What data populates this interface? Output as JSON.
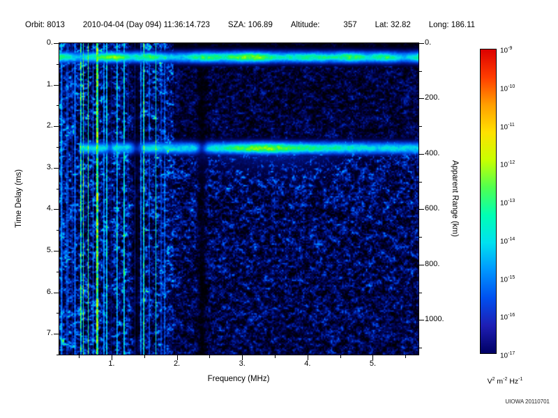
{
  "header": {
    "orbit": "Orbit: 8013",
    "datetime": "2010-04-04 (Day 094) 11:36:14.723",
    "sza": "SZA: 106.89",
    "altitude_label": "Altitude:",
    "altitude_value": "357",
    "lat": "Lat: 32.82",
    "long": "Long: 186.11"
  },
  "chart_data": {
    "type": "heatmap",
    "description": "Radar sounder ionogram: received echo spectral density as a function of sounding frequency and time delay. Dense vertical electron-plasma-oscillation stripes below ~1.9 MHz, a horizontal ionospheric echo band near 0.3 ms, and a bright surface-reflection band near 2.5 ms (~375 km apparent range), brightest near 3.4 MHz, with diffuse blue scatter beneath it.",
    "x_axis": {
      "label": "Frequency (MHz)",
      "min": 0.2,
      "max": 5.7,
      "major_ticks": [
        1,
        2,
        3,
        4,
        5
      ],
      "tick_labels": [
        "1.",
        "2.",
        "3.",
        "4.",
        "5."
      ],
      "minor_ticks": [
        0.5,
        1.5,
        2.5,
        3.5,
        4.5,
        5.5
      ]
    },
    "y_axis_left": {
      "label": "Time Delay (ms)",
      "min": 0,
      "max": 7.5,
      "major_ticks": [
        0,
        1,
        2,
        3,
        4,
        5,
        6,
        7
      ],
      "tick_labels": [
        "0.",
        "1.",
        "2.",
        "3.",
        "4.",
        "5.",
        "6.",
        "7."
      ],
      "minor_ticks": [
        0.5,
        1.5,
        2.5,
        3.5,
        4.5,
        5.5,
        6.5,
        7.5
      ]
    },
    "y_axis_right": {
      "label": "Apparent Range (km)",
      "km_per_ms": 150,
      "major_ticks": [
        0,
        200,
        400,
        600,
        800,
        1000
      ],
      "tick_labels": [
        "0.",
        "200.",
        "400.",
        "600.",
        "800.",
        "1000."
      ],
      "minor_ticks": [
        100,
        300,
        500,
        700,
        900,
        1100
      ]
    },
    "colorbar": {
      "scale": "log",
      "tick_exponents": [
        "-9",
        "-10",
        "-11",
        "-12",
        "-13",
        "-14",
        "-15",
        "-16",
        "-17"
      ],
      "units_parts": [
        [
          "V",
          "2"
        ],
        [
          "m",
          "-2"
        ],
        [
          "Hz",
          "-1"
        ]
      ],
      "gradient": [
        "#dc0000",
        "#ff3c00",
        "#ff9e00",
        "#ffe100",
        "#c8ff00",
        "#50ff50",
        "#00ffb4",
        "#00e1f0",
        "#0096ff",
        "#0050f0",
        "#1e1eb4",
        "#000064"
      ]
    },
    "features": {
      "ionospheric_echo_band_ms": 0.33,
      "surface_reflection_ms": 2.5,
      "surface_reflection_apparent_range_km": 375,
      "plasma_stripes_below_mhz": 1.9,
      "brightest_surface_echo_mhz": 3.4,
      "attenuation_gap_mhz": 2.4
    }
  },
  "footer": {
    "credit": "UIOWA 20110701"
  }
}
